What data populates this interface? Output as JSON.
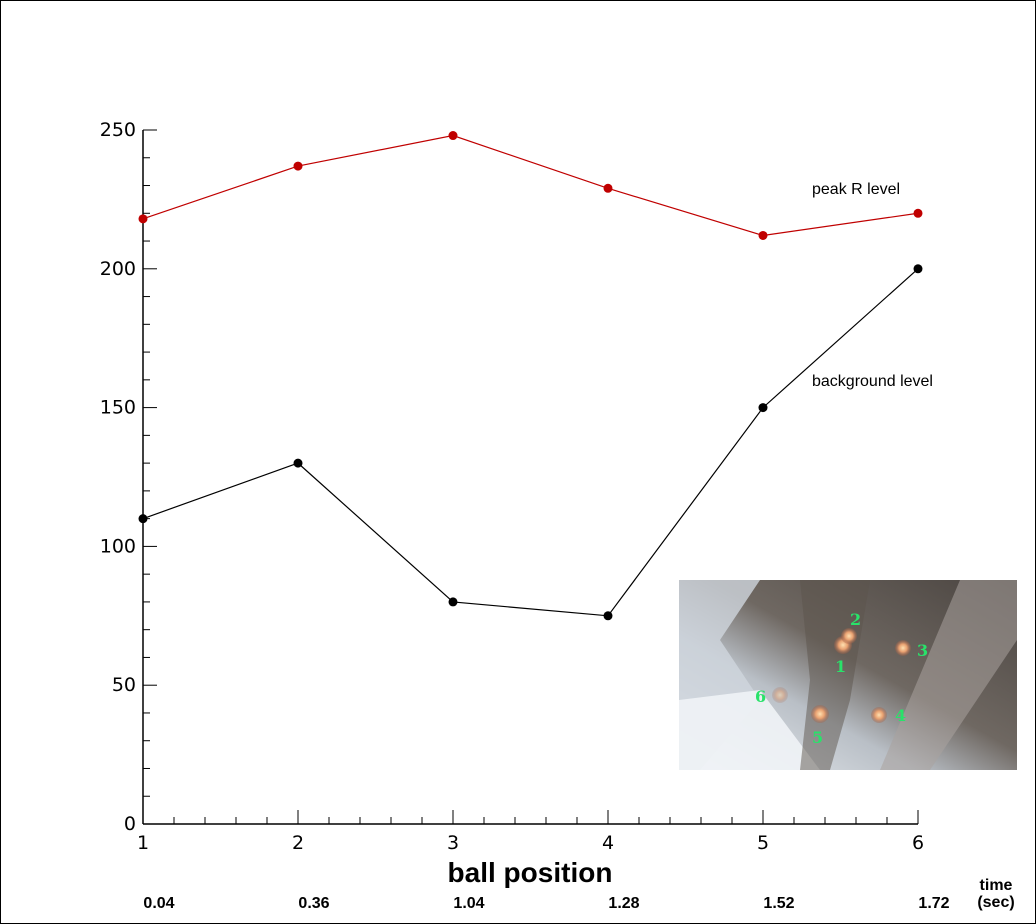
{
  "chart_data": {
    "type": "line",
    "xlabel": "ball position",
    "ylabel": "",
    "x": [
      1,
      2,
      3,
      4,
      5,
      6
    ],
    "xlim": [
      1,
      6
    ],
    "ylim": [
      0,
      250
    ],
    "xticks": [
      "1",
      "2",
      "3",
      "4",
      "5",
      "6"
    ],
    "yticks": [
      "0",
      "50",
      "100",
      "150",
      "200",
      "250"
    ],
    "grid": false,
    "series": [
      {
        "name": "peak R level",
        "color": "#c00000",
        "values": [
          218,
          237,
          248,
          229,
          212,
          220
        ]
      },
      {
        "name": "background level",
        "color": "#000000",
        "values": [
          110,
          130,
          80,
          75,
          150,
          200
        ]
      }
    ],
    "time_axis": {
      "title_line1": "time",
      "title_line2": "(sec)",
      "values": [
        "0.04",
        "0.36",
        "1.04",
        "1.28",
        "1.52",
        "1.72"
      ]
    }
  },
  "inset": {
    "ball_labels": [
      "1",
      "2",
      "3",
      "4",
      "5",
      "6"
    ],
    "label_color": "#29e26a"
  }
}
